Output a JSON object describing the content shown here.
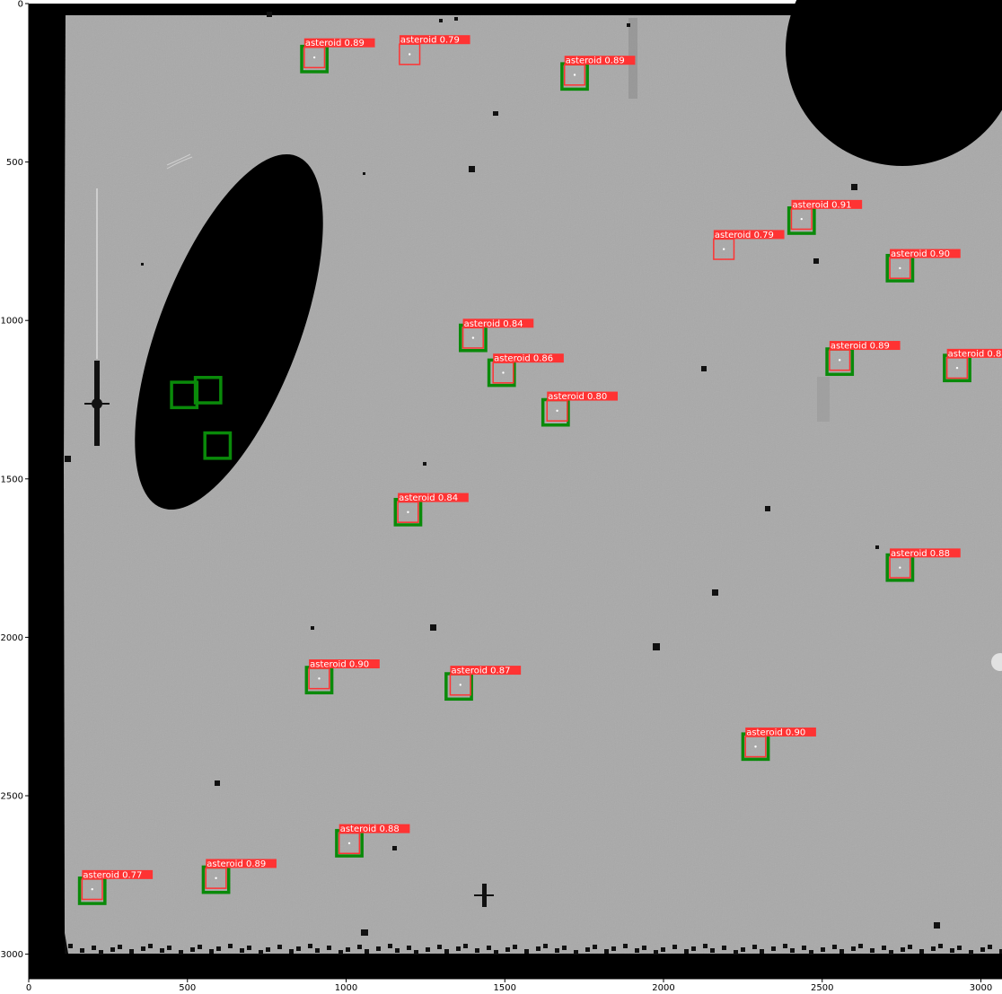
{
  "axes": {
    "x_ticks": [
      0,
      500,
      1000,
      1500,
      2000,
      2500,
      3000
    ],
    "y_ticks": [
      0,
      500,
      1000,
      1500,
      2000,
      2500,
      3000
    ],
    "x_range": [
      0,
      3088
    ],
    "y_range": [
      0,
      3088
    ],
    "grid": false
  },
  "colors": {
    "ground_truth_box": "#0a8a0a",
    "prediction_box": "#ff3333",
    "label_background": "#ff3333",
    "label_text": "#ffffff",
    "background": "#a9a9a9",
    "mask": "#000000"
  },
  "detections": [
    {
      "x": 900,
      "y": 170,
      "label": "asteroid",
      "score": "0.89"
    },
    {
      "x": 1200,
      "y": 160,
      "label": "asteroid",
      "score": "0.79"
    },
    {
      "x": 1720,
      "y": 225,
      "label": "asteroid",
      "score": "0.89"
    },
    {
      "x": 2435,
      "y": 680,
      "label": "asteroid",
      "score": "0.91"
    },
    {
      "x": 2190,
      "y": 775,
      "label": "asteroid",
      "score": "0.79"
    },
    {
      "x": 2745,
      "y": 835,
      "label": "asteroid",
      "score": "0.90"
    },
    {
      "x": 1400,
      "y": 1055,
      "label": "asteroid",
      "score": "0.84"
    },
    {
      "x": 2555,
      "y": 1125,
      "label": "asteroid",
      "score": "0.89"
    },
    {
      "x": 2925,
      "y": 1150,
      "label": "asteroid",
      "score": "0.8"
    },
    {
      "x": 1495,
      "y": 1165,
      "label": "asteroid",
      "score": "0.86"
    },
    {
      "x": 1665,
      "y": 1285,
      "label": "asteroid",
      "score": "0.80"
    },
    {
      "x": 1195,
      "y": 1605,
      "label": "asteroid",
      "score": "0.84"
    },
    {
      "x": 2745,
      "y": 1780,
      "label": "asteroid",
      "score": "0.88"
    },
    {
      "x": 915,
      "y": 2130,
      "label": "asteroid",
      "score": "0.90"
    },
    {
      "x": 1360,
      "y": 2150,
      "label": "asteroid",
      "score": "0.87"
    },
    {
      "x": 2290,
      "y": 2345,
      "label": "asteroid",
      "score": "0.90"
    },
    {
      "x": 1010,
      "y": 2650,
      "label": "asteroid",
      "score": "0.88"
    },
    {
      "x": 590,
      "y": 2760,
      "label": "asteroid",
      "score": "0.89"
    },
    {
      "x": 200,
      "y": 2795,
      "label": "asteroid",
      "score": "0.77"
    }
  ],
  "ground_truth": [
    {
      "x": 900,
      "y": 175
    },
    {
      "x": 1720,
      "y": 230
    },
    {
      "x": 2435,
      "y": 685
    },
    {
      "x": 2745,
      "y": 835
    },
    {
      "x": 1400,
      "y": 1055
    },
    {
      "x": 2555,
      "y": 1130
    },
    {
      "x": 2925,
      "y": 1150
    },
    {
      "x": 1490,
      "y": 1165
    },
    {
      "x": 1660,
      "y": 1290
    },
    {
      "x": 1195,
      "y": 1605
    },
    {
      "x": 2745,
      "y": 1780
    },
    {
      "x": 915,
      "y": 2135
    },
    {
      "x": 1355,
      "y": 2155
    },
    {
      "x": 2290,
      "y": 2345
    },
    {
      "x": 1010,
      "y": 2650
    },
    {
      "x": 590,
      "y": 2765
    },
    {
      "x": 200,
      "y": 2800
    },
    {
      "x": 490,
      "y": 1235
    },
    {
      "x": 565,
      "y": 1220
    },
    {
      "x": 595,
      "y": 1395
    }
  ]
}
